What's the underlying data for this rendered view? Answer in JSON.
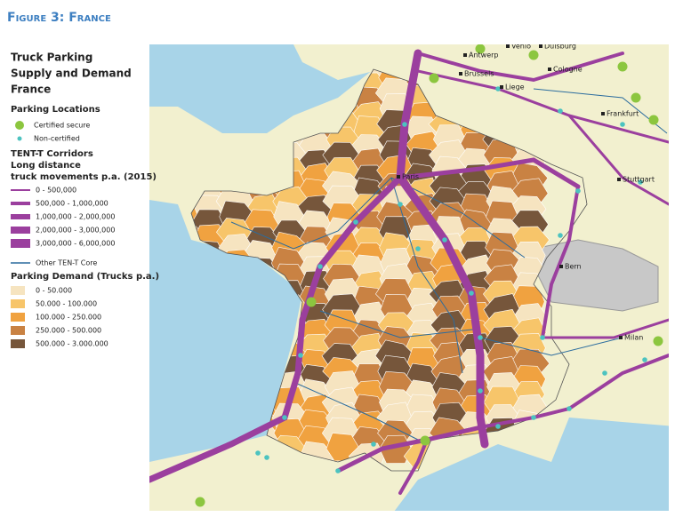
{
  "figure_title": "Figure 3: France",
  "legend": {
    "title": [
      "Truck Parking",
      "Supply and Demand",
      "France"
    ],
    "parking_locations": {
      "heading": "Parking Locations",
      "items": [
        {
          "label": "Certified secure",
          "color": "#8cc63f"
        },
        {
          "label": "Non-certified",
          "color": "#4cc3c0"
        }
      ]
    },
    "corridors": {
      "heading": [
        "TENT-T Corridors",
        "Long distance",
        "truck movements p.a. (2015)"
      ],
      "color": "#9b3f9e",
      "items": [
        "0 - 500,000",
        "500,000 - 1,000,000",
        "1,000,000 - 2,000,000",
        "2,000,000 - 3,000,000",
        "3,000,000 - 6,000,000"
      ]
    },
    "other_core": {
      "label": "Other TEN-T Core",
      "color": "#2b6c9e"
    },
    "demand": {
      "heading": "Parking Demand (Trucks p.a.)",
      "items": [
        {
          "label": "0 - 50.000",
          "color": "#f6e4c0"
        },
        {
          "label": "50.000 - 100.000",
          "color": "#f7c56a"
        },
        {
          "label": "100.000 - 250.000",
          "color": "#f0a240"
        },
        {
          "label": "250.000 - 500.000",
          "color": "#c98243"
        },
        {
          "label": "500.000 - 3.000.000",
          "color": "#76563b"
        }
      ]
    }
  },
  "map_labels": [
    "Venlo",
    "Duisburg",
    "Antwerp",
    "Brussels",
    "Liege",
    "Cologne",
    "Frankfurt",
    "Stuttgart",
    "Paris",
    "Bern",
    "Milan"
  ]
}
